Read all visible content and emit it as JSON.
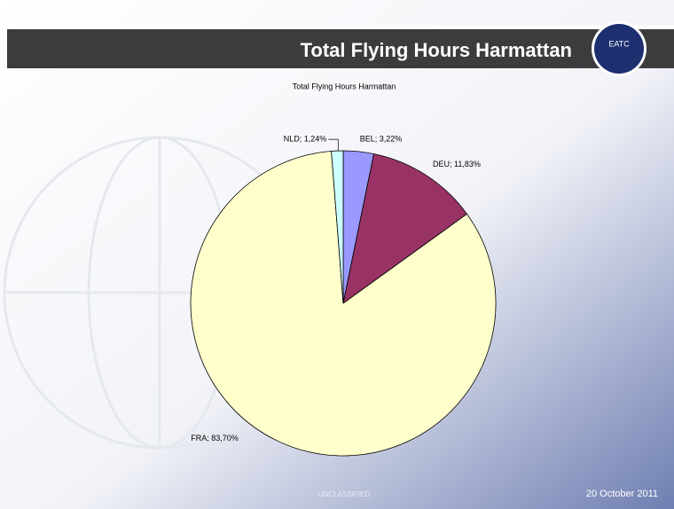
{
  "slide": {
    "title": "Total Flying Hours Harmattan",
    "logo": "EATC",
    "classification": "UNCLASSIFIED",
    "date": "20 October 2011"
  },
  "chart_data": {
    "type": "pie",
    "title": "Total Flying Hours Harmattan",
    "labels": [
      "BEL; 3,22%",
      "DEU; 11,83%",
      "FRA; 83,70%",
      "NLD; 1,24%"
    ],
    "values": [
      3.22,
      11.83,
      83.7,
      1.24
    ],
    "colors": [
      "#9999ff",
      "#993366",
      "#ffffcc",
      "#ccffff"
    ]
  }
}
